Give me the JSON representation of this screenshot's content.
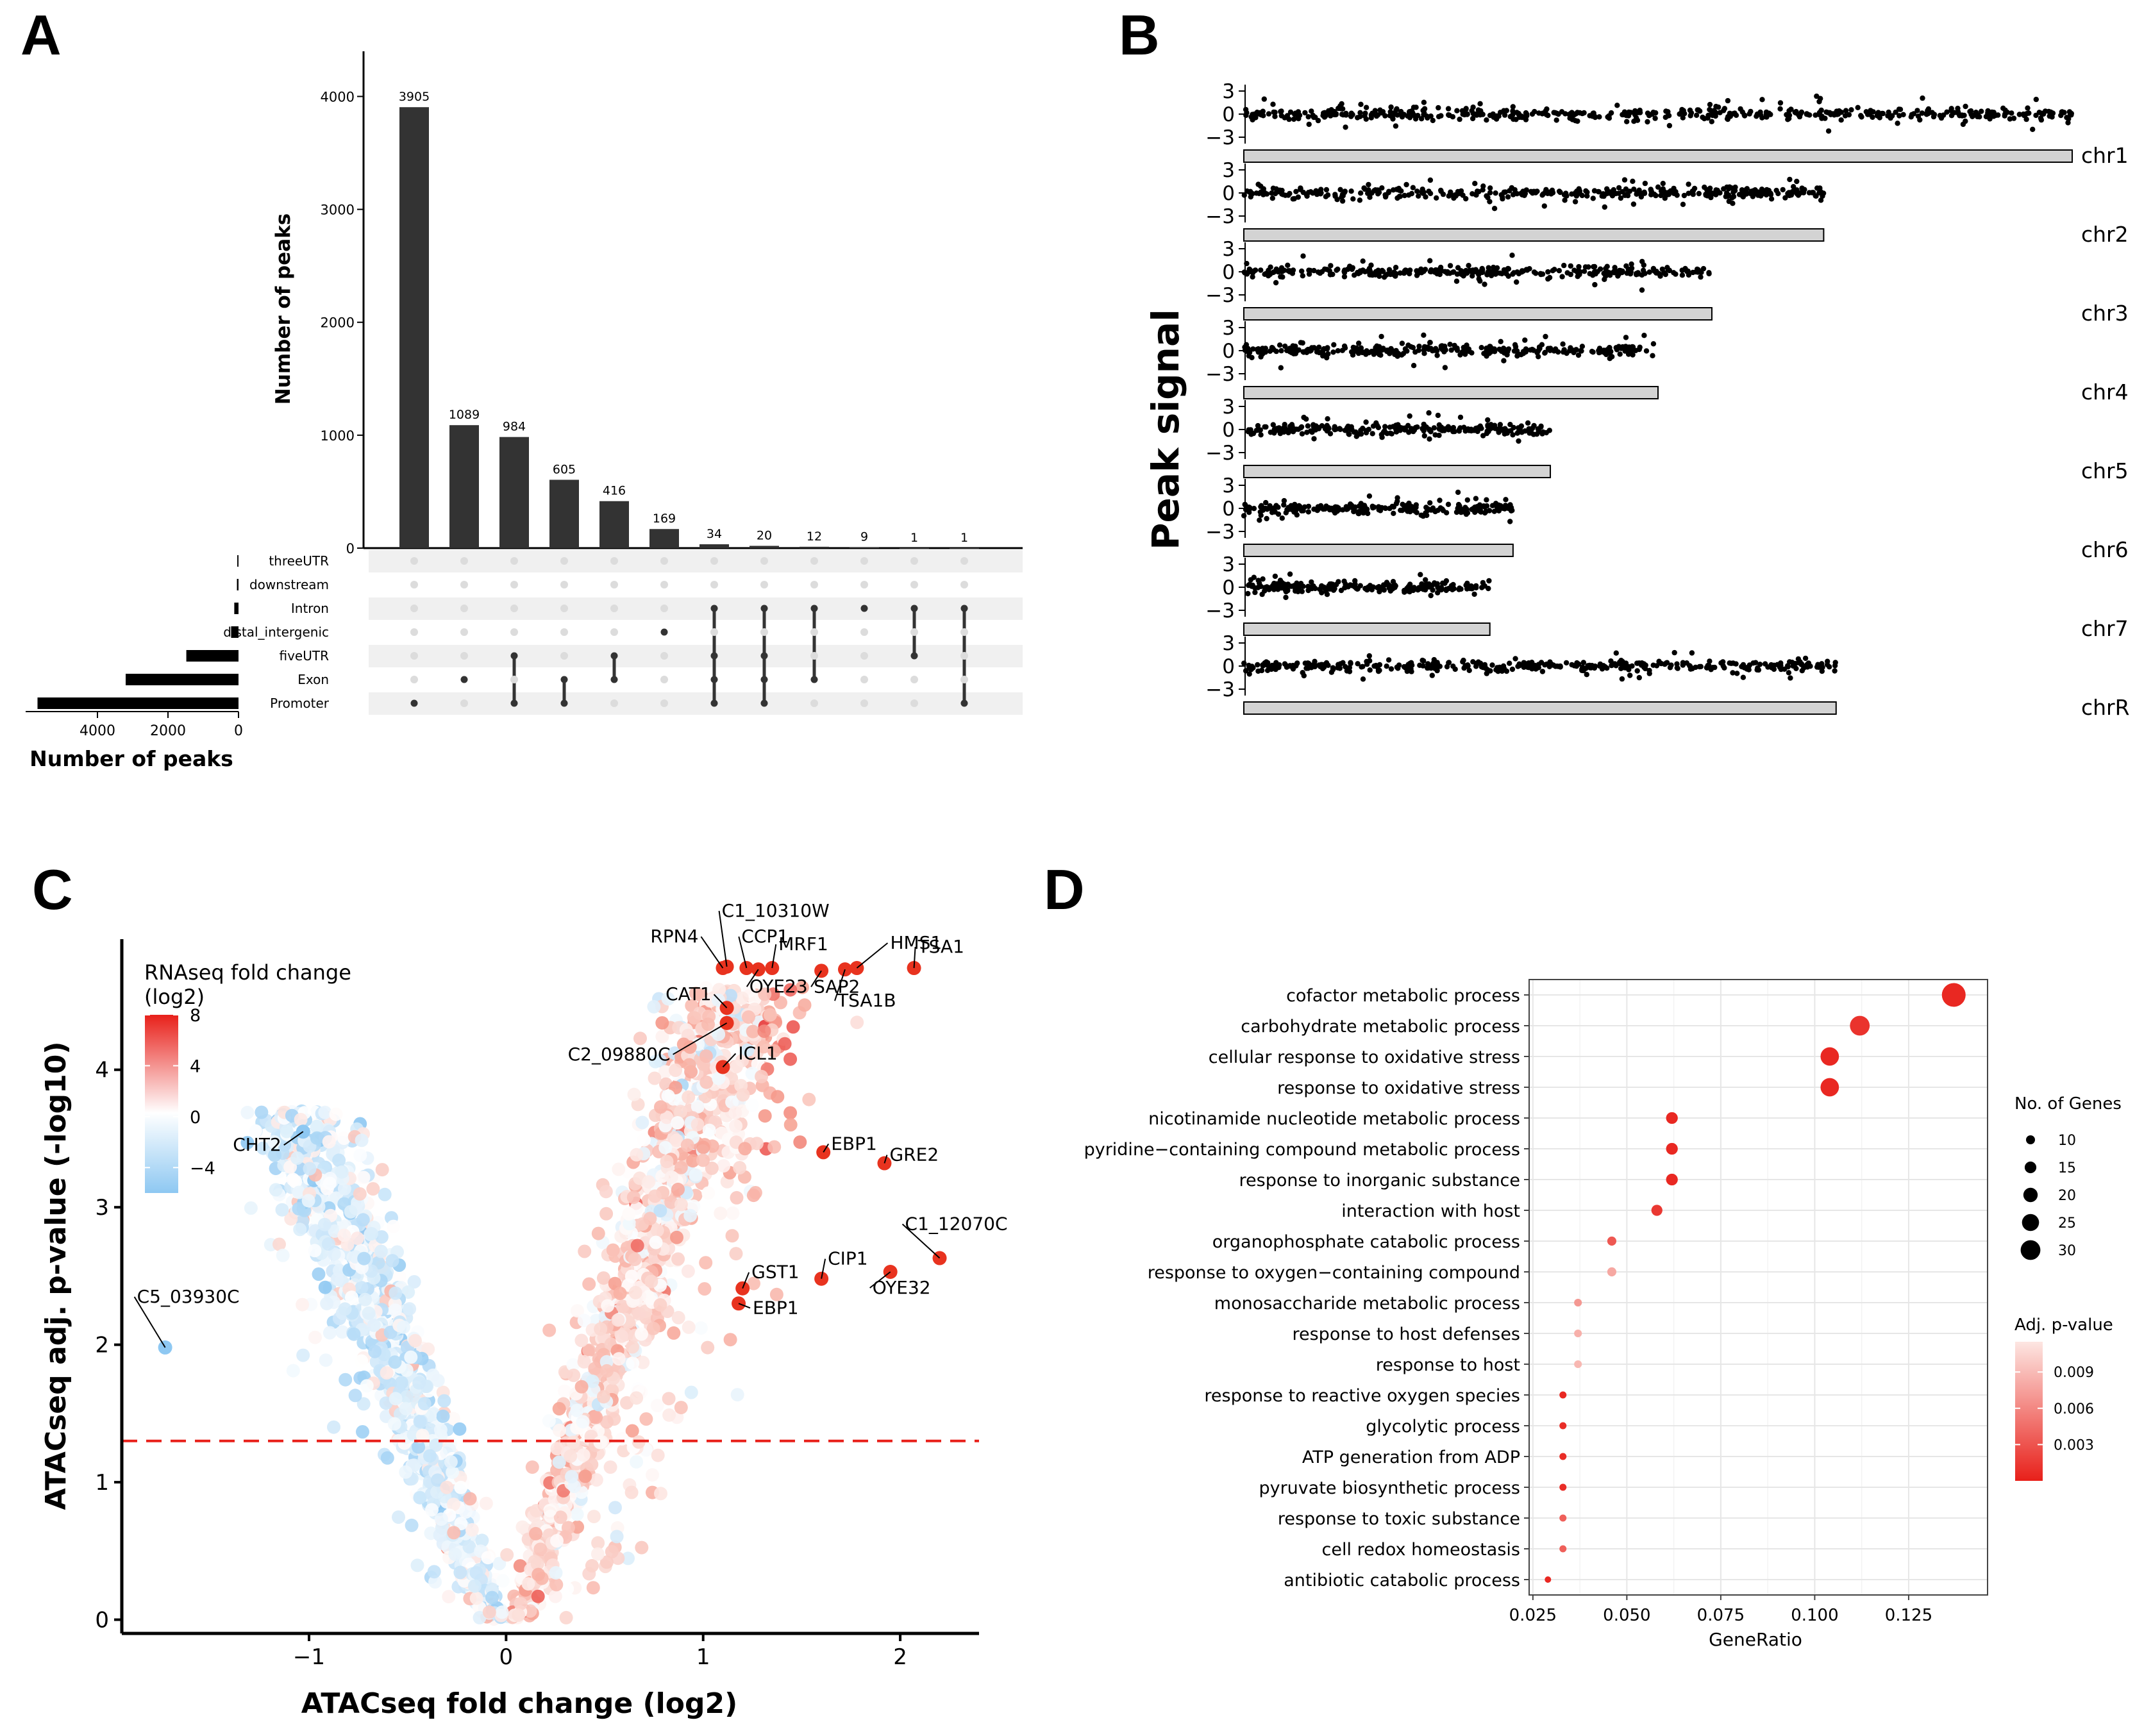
{
  "panels": {
    "a": "A",
    "b": "B",
    "c": "C",
    "d": "D"
  },
  "chart_data": [
    {
      "panel": "A",
      "type": "bar",
      "title": "",
      "ylabel": "Number of peaks",
      "ylim": [
        0,
        4400
      ],
      "yticks": [
        0,
        1000,
        2000,
        3000,
        4000
      ],
      "values": [
        3905,
        1089,
        984,
        605,
        416,
        169,
        34,
        20,
        12,
        9,
        1,
        1
      ],
      "sets": [
        "threeUTR",
        "downstream",
        "Intron",
        "distal_intergenic",
        "fiveUTR",
        "Exon",
        "Promoter"
      ],
      "memberships": [
        [
          "Promoter"
        ],
        [
          "Exon"
        ],
        [
          "fiveUTR",
          "Promoter"
        ],
        [
          "Exon",
          "Promoter"
        ],
        [
          "fiveUTR",
          "Exon"
        ],
        [
          "distal_intergenic"
        ],
        [
          "Intron",
          "fiveUTR",
          "Exon",
          "Promoter"
        ],
        [
          "Intron",
          "fiveUTR",
          "Exon",
          "Promoter"
        ],
        [
          "Intron",
          "Exon"
        ],
        [
          "Intron"
        ],
        [
          "Intron",
          "fiveUTR"
        ],
        [
          "Intron",
          "Promoter"
        ]
      ],
      "set_sizes": [
        35,
        45,
        120,
        210,
        1480,
        3200,
        5700
      ],
      "set_xlabel": "Number of peaks",
      "set_xticks": [
        4000,
        2000,
        0
      ]
    },
    {
      "panel": "B",
      "type": "scatter",
      "ylabel": "Peak signal",
      "yticks": [
        3,
        0,
        -3
      ],
      "chromosomes": [
        "chr1",
        "chr2",
        "chr3",
        "chr4",
        "chr5",
        "chr6",
        "chr7",
        "chrR"
      ],
      "relative_lengths": [
        1.0,
        0.7,
        0.565,
        0.5,
        0.37,
        0.325,
        0.297,
        0.715
      ]
    },
    {
      "panel": "C",
      "type": "scatter",
      "xlabel": "ATACseq fold change (log2)",
      "ylabel": "ATACseq adj. p-value (-log10)",
      "xlim": [
        -1.95,
        2.4
      ],
      "ylim": [
        -0.1,
        4.95
      ],
      "xticks": [
        -1,
        0,
        1,
        2
      ],
      "yticks": [
        0,
        1,
        2,
        3,
        4
      ],
      "threshold_y": 1.3,
      "legend_title": "RNAseq fold change (log2)",
      "legend_title_line1": "RNAseq fold change",
      "legend_title_line2": "(log2)",
      "legend_ticks": [
        8,
        4,
        0,
        -4
      ],
      "labeled_points": [
        {
          "label": "C1_10310W",
          "x": 1.12,
          "y": 4.75
        },
        {
          "label": "RPN4",
          "x": 1.1,
          "y": 4.74
        },
        {
          "label": "CCP1",
          "x": 1.22,
          "y": 4.74
        },
        {
          "label": "MRF1",
          "x": 1.35,
          "y": 4.74
        },
        {
          "label": "HMS1",
          "x": 1.78,
          "y": 4.74
        },
        {
          "label": "TSA1",
          "x": 2.07,
          "y": 4.74
        },
        {
          "label": "OYE23",
          "x": 1.28,
          "y": 4.73
        },
        {
          "label": "SAP2",
          "x": 1.6,
          "y": 4.72
        },
        {
          "label": "TSA1B",
          "x": 1.72,
          "y": 4.73
        },
        {
          "label": "CAT1",
          "x": 1.12,
          "y": 4.45
        },
        {
          "label": "C2_09880C",
          "x": 1.12,
          "y": 4.34
        },
        {
          "label": "ICL1",
          "x": 1.1,
          "y": 4.02
        },
        {
          "label": "CHT2",
          "x": -1.03,
          "y": 3.55
        },
        {
          "label": "EBP1",
          "x": 1.61,
          "y": 3.4
        },
        {
          "label": "GRE2",
          "x": 1.92,
          "y": 3.32
        },
        {
          "label": "C1_12070C",
          "x": 2.2,
          "y": 2.63
        },
        {
          "label": "GST1",
          "x": 1.2,
          "y": 2.41
        },
        {
          "label": "CIP1",
          "x": 1.6,
          "y": 2.48
        },
        {
          "label": "OYE32",
          "x": 1.95,
          "y": 2.53
        },
        {
          "label": "EBP1",
          "x": 1.18,
          "y": 2.3
        },
        {
          "label": "C5_03930C",
          "x": -1.73,
          "y": 1.98
        }
      ]
    },
    {
      "panel": "D",
      "type": "scatter",
      "xlabel": "GeneRatio",
      "xlim": [
        0.024,
        0.146
      ],
      "xticks": [
        0.025,
        0.05,
        0.075,
        0.1,
        0.125
      ],
      "xtick_labels": [
        "0.025",
        "0.050",
        "0.075",
        "0.100",
        "0.125"
      ],
      "size_legend_title": "No. of Genes",
      "size_legend": [
        10,
        15,
        20,
        25,
        30
      ],
      "color_legend_title": "Adj. p-value",
      "color_legend_ticks": [
        0.009,
        0.006,
        0.003
      ],
      "color_legend_tick_labels": [
        "0.009",
        "0.006",
        "0.003"
      ],
      "terms": [
        {
          "term": "cofactor metabolic process",
          "x": 0.137,
          "count": 33,
          "p": 0.0005
        },
        {
          "term": "carbohydrate metabolic process",
          "x": 0.112,
          "count": 27,
          "p": 0.0012
        },
        {
          "term": "cellular response to oxidative stress",
          "x": 0.104,
          "count": 25,
          "p": 0.0005
        },
        {
          "term": "response to oxidative stress",
          "x": 0.104,
          "count": 25,
          "p": 0.0005
        },
        {
          "term": "nicotinamide nucleotide metabolic process",
          "x": 0.062,
          "count": 15,
          "p": 0.0005
        },
        {
          "term": "pyridine-containing compound metabolic process",
          "x": 0.062,
          "count": 15,
          "p": 0.0005
        },
        {
          "term": "response to inorganic substance",
          "x": 0.062,
          "count": 15,
          "p": 0.0005
        },
        {
          "term": "interaction with host",
          "x": 0.058,
          "count": 14,
          "p": 0.0015
        },
        {
          "term": "organophosphate catabolic process",
          "x": 0.046,
          "count": 11,
          "p": 0.0035
        },
        {
          "term": "response to oxygen-containing compound",
          "x": 0.046,
          "count": 11,
          "p": 0.0085
        },
        {
          "term": "monosaccharide metabolic process",
          "x": 0.037,
          "count": 9,
          "p": 0.0075
        },
        {
          "term": "response to host defenses",
          "x": 0.037,
          "count": 9,
          "p": 0.009
        },
        {
          "term": "response to host",
          "x": 0.037,
          "count": 9,
          "p": 0.0095
        },
        {
          "term": "response to reactive oxygen species",
          "x": 0.033,
          "count": 8,
          "p": 0.0005
        },
        {
          "term": "glycolytic process",
          "x": 0.033,
          "count": 8,
          "p": 0.0008
        },
        {
          "term": "ATP generation from ADP",
          "x": 0.033,
          "count": 8,
          "p": 0.0008
        },
        {
          "term": "pyruvate biosynthetic process",
          "x": 0.033,
          "count": 8,
          "p": 0.0008
        },
        {
          "term": "response to toxic substance",
          "x": 0.033,
          "count": 8,
          "p": 0.004
        },
        {
          "term": "cell redox homeostasis",
          "x": 0.033,
          "count": 8,
          "p": 0.004
        },
        {
          "term": "antibiotic catabolic process",
          "x": 0.029,
          "count": 7,
          "p": 0.0005
        }
      ]
    }
  ]
}
